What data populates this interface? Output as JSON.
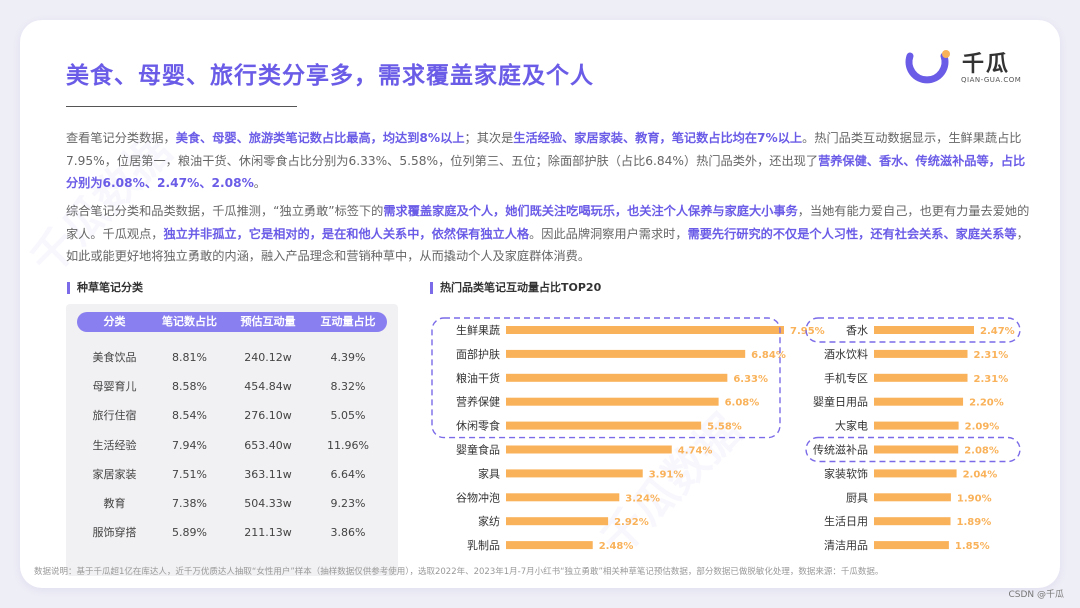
{
  "title": "美食、母婴、旅行类分享多，需求覆盖家庭及个人",
  "logo": {
    "cn": "千瓜",
    "en": "QIAN-GUA.COM"
  },
  "paragraph1": [
    {
      "t": "查看笔记分类数据，",
      "h": false
    },
    {
      "t": "美食、母婴、旅游类笔记数占比最高，均达到8%以上",
      "h": true
    },
    {
      "t": "；其次是",
      "h": false
    },
    {
      "t": "生活经验、家居家装、教育，笔记数占比均在7%以上",
      "h": true
    },
    {
      "t": "。热门品类互动数据显示，生鲜果蔬占比7.95%，位居第一，粮油干货、休闲零食占比分别为6.33%、5.58%，位列第三、五位；除面部护肤（占比6.84%）热门品类外，还出现了",
      "h": false
    },
    {
      "t": "营养保健、香水、传统滋补品等，占比分别为6.08%、2.47%、2.08%",
      "h": true
    },
    {
      "t": "。",
      "h": false
    }
  ],
  "paragraph2": [
    {
      "t": "综合笔记分类和品类数据，千瓜推测，“独立勇敢”标签下的",
      "h": false
    },
    {
      "t": "需求覆盖家庭及个人，她们既关注吃喝玩乐，也关注个人保养与家庭大小事务",
      "h": true
    },
    {
      "t": "，当她有能力爱自己，也更有力量去爱她的家人。千瓜观点，",
      "h": false
    },
    {
      "t": "独立并非孤立，它是相对的，是在和他人关系中，依然保有独立人格",
      "h": true
    },
    {
      "t": "。因此品牌洞察用户需求时，",
      "h": false
    },
    {
      "t": "需要先行研究的不仅是个人习性，还有社会关系、家庭关系等",
      "h": true
    },
    {
      "t": "，如此或能更好地将独立勇敢的内涵，融入产品理念和营销种草中，从而撬动个人及家庭群体消费。",
      "h": false
    }
  ],
  "section1_title": "种草笔记分类",
  "section2_title": "热门品类笔记互动量占比TOP20",
  "table": {
    "headers": [
      "分类",
      "笔记数占比",
      "预估互动量",
      "互动量占比"
    ],
    "rows": [
      [
        "美食饮品",
        "8.81%",
        "240.12w",
        "4.39%"
      ],
      [
        "母婴育儿",
        "8.58%",
        "454.84w",
        "8.32%"
      ],
      [
        "旅行住宿",
        "8.54%",
        "276.10w",
        "5.05%"
      ],
      [
        "生活经验",
        "7.94%",
        "653.40w",
        "11.96%"
      ],
      [
        "家居家装",
        "7.51%",
        "363.11w",
        "6.64%"
      ],
      [
        "教育",
        "7.38%",
        "504.33w",
        "9.23%"
      ],
      [
        "服饰穿搭",
        "5.89%",
        "211.13w",
        "3.86%"
      ]
    ]
  },
  "chart_data": {
    "type": "bar",
    "title": "热门品类笔记互动量占比TOP20",
    "orientation": "horizontal",
    "series_color": "#f9b25a",
    "highlight_color": "#7b6be8",
    "groups": [
      {
        "categories": [
          "生鲜果蔬",
          "面部护肤",
          "粮油干货",
          "营养保健",
          "休闲零食",
          "婴童食品",
          "家具",
          "谷物冲泡",
          "家纺",
          "乳制品"
        ],
        "values": [
          7.95,
          6.84,
          6.33,
          6.08,
          5.58,
          4.74,
          3.91,
          3.24,
          2.92,
          2.48
        ],
        "labels": [
          "7.95%",
          "6.84%",
          "6.33%",
          "6.08%",
          "5.58%",
          "4.74%",
          "3.91%",
          "3.24%",
          "2.92%",
          "2.48%"
        ],
        "highlighted": [
          "生鲜果蔬",
          "面部护肤",
          "粮油干货",
          "营养保健",
          "休闲零食"
        ]
      },
      {
        "categories": [
          "香水",
          "酒水饮料",
          "手机专区",
          "婴童日用品",
          "大家电",
          "传统滋补品",
          "家装软饰",
          "厨具",
          "生活日用",
          "清洁用品"
        ],
        "values": [
          2.47,
          2.31,
          2.31,
          2.2,
          2.09,
          2.08,
          2.04,
          1.9,
          1.89,
          1.85
        ],
        "labels": [
          "2.47%",
          "2.31%",
          "2.31%",
          "2.20%",
          "2.09%",
          "2.08%",
          "2.04%",
          "1.90%",
          "1.89%",
          "1.85%"
        ],
        "highlighted": [
          "香水",
          "传统滋补品"
        ]
      }
    ]
  },
  "footnote": "数据说明：基于千瓜超1亿在库达人，近千万优质达人抽取“女性用户”样本（抽样数据仅供参考使用），选取2022年、2023年1月-7月小红书“独立勇敢”相关种草笔记预估数据，部分数据已做脱敏化处理，数据来源：千瓜数据。",
  "credit": "CSDN @千瓜",
  "watermark": "千瓜数据"
}
